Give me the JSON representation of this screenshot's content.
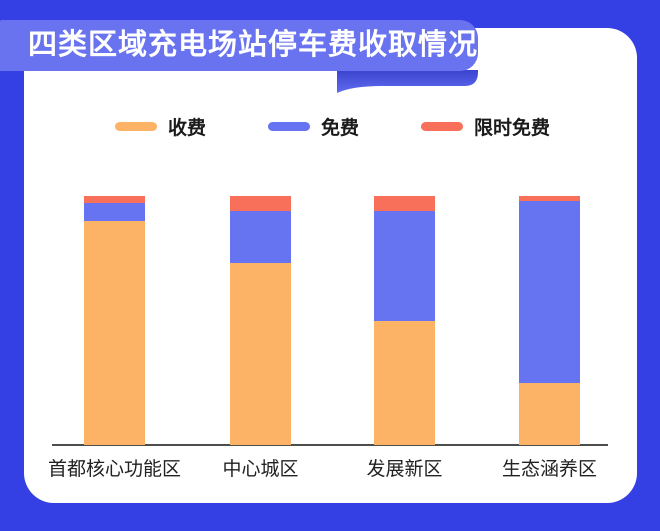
{
  "header": {
    "title": "四类区域充电场站停车费收取情况"
  },
  "colors": {
    "background": "#3540E4",
    "card": "#FFFFFF",
    "banner": "#6973EF",
    "banner_shadow_dark": "#3A43CE",
    "banner_shadow_light": "#606CEF",
    "axis_line": "#4D4D4D",
    "category_text": "#222222",
    "legend_text": "#1A1A1A",
    "title_text": "#FFFFFF"
  },
  "chart_data": {
    "type": "bar",
    "stacked": true,
    "unit": "percent",
    "title": "四类区域充电场站停车费收取情况",
    "categories": [
      "首都核心功能区",
      "中心城区",
      "发展新区",
      "生态涵养区"
    ],
    "series": [
      {
        "name": "收费",
        "color": "#FDB366",
        "values": [
          90,
          73,
          50,
          25
        ]
      },
      {
        "name": "免费",
        "color": "#6674F2",
        "values": [
          7,
          21,
          44,
          73
        ]
      },
      {
        "name": "限时免费",
        "color": "#F9705A",
        "values": [
          3,
          6,
          6,
          2
        ]
      }
    ],
    "xlabel": "",
    "ylabel": "",
    "ylim": [
      0,
      100
    ],
    "y_axis_visible": false,
    "gridlines": false,
    "legend_position": "top",
    "bar_order_bottom_to_top": [
      "收费",
      "免费",
      "限时免费"
    ]
  }
}
